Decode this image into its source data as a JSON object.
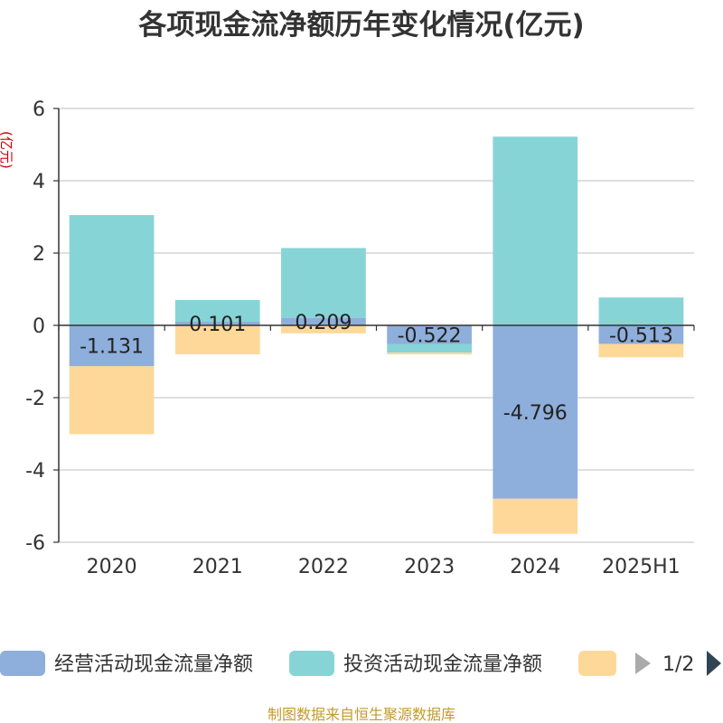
{
  "chart_data": {
    "type": "bar",
    "stacked": true,
    "title": "各项现金流净额历年变化情况(亿元)",
    "ylabel": "(亿元)",
    "xlabel": "",
    "ylim": [
      -6,
      6
    ],
    "yticks": [
      6,
      4,
      2,
      0,
      -2,
      -4,
      -6
    ],
    "categories": [
      "2020",
      "2021",
      "2022",
      "2023",
      "2024",
      "2025H1"
    ],
    "grid": true,
    "legend_position": "bottom",
    "series": [
      {
        "name": "经营活动现金流量净额",
        "color": "#8eaedb",
        "values": [
          -1.131,
          0.101,
          0.209,
          -0.522,
          -4.796,
          -0.513
        ],
        "labels": [
          "-1.131",
          "0.101",
          "0.209",
          "-0.522",
          "-4.796",
          "-0.513"
        ]
      },
      {
        "name": "投资活动现金流量净额",
        "color": "#87d4d7",
        "values": [
          3.05,
          0.6,
          1.93,
          -0.23,
          5.22,
          0.77
        ]
      },
      {
        "name": "",
        "color": "#fed898",
        "values": [
          -1.88,
          -0.8,
          -0.22,
          -0.05,
          -0.97,
          -0.37
        ]
      }
    ]
  },
  "legend": {
    "page": "1/2"
  },
  "source_note": "制图数据来自恒生聚源数据库"
}
